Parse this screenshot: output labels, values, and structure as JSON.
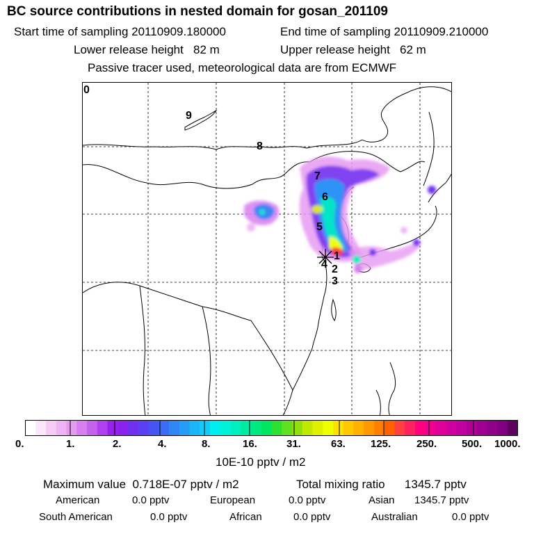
{
  "header": {
    "title": "BC  source contributions in nested domain for gosan_201109",
    "start_label": "Start time of sampling",
    "start_value": "20110909.180000",
    "end_label": "End time of sampling",
    "end_value": "20110909.210000",
    "lower_label": "Lower release height",
    "lower_value": "82 m",
    "upper_label": "Upper release height",
    "upper_value": "62 m",
    "tracer_note": "Passive tracer used, meteorological data are from ECMWF"
  },
  "map": {
    "corner_label": "0",
    "trajectory_labels": [
      "1",
      "2",
      "3",
      "4",
      "5",
      "6",
      "7",
      "8",
      "9"
    ],
    "release_site": "gosan"
  },
  "colorbar": {
    "tick_labels": [
      "0.",
      "1.",
      "2.",
      "4.",
      "8.",
      "16.",
      "31.",
      "63.",
      "125.",
      "250.",
      "500.",
      "1000."
    ],
    "unit": "10E-10 pptv / m2",
    "colors": [
      "#ffffff",
      "#fbe6fb",
      "#f5ccf5",
      "#efb3f4",
      "#e69af1",
      "#d77ff0",
      "#c560ef",
      "#b040ee",
      "#9a20f0",
      "#8a22f0",
      "#7030f0",
      "#5a40f0",
      "#4555f2",
      "#3a6cf4",
      "#2f84f6",
      "#259cf8",
      "#1ab4f8",
      "#10ccf8",
      "#00eef0",
      "#00f0d8",
      "#00eec0",
      "#00eca0",
      "#00e880",
      "#00e660",
      "#30e030",
      "#60e020",
      "#90e010",
      "#c0e800",
      "#e0f000",
      "#f0ff00",
      "#ffe000",
      "#ffc800",
      "#ffb000",
      "#ff9800",
      "#ff8000",
      "#ff6000",
      "#ff4040",
      "#ff2060",
      "#ff0080",
      "#f00090",
      "#e00098",
      "#d000a0",
      "#c000a0",
      "#b00098",
      "#a00090",
      "#900088",
      "#800080",
      "#600060"
    ]
  },
  "stats": {
    "max_label": "Maximum value",
    "max_value": "0.718E-07 pptv / m2",
    "total_label": "Total mixing ratio",
    "total_value": "1345.7 pptv",
    "regions": [
      {
        "name": "American",
        "value": "0.0 pptv"
      },
      {
        "name": "European",
        "value": "0.0 pptv"
      },
      {
        "name": "Asian",
        "value": "1345.7 pptv"
      },
      {
        "name": "South American",
        "value": "0.0 pptv"
      },
      {
        "name": "African",
        "value": "0.0 pptv"
      },
      {
        "name": "Australian",
        "value": "0.0 pptv"
      }
    ]
  }
}
